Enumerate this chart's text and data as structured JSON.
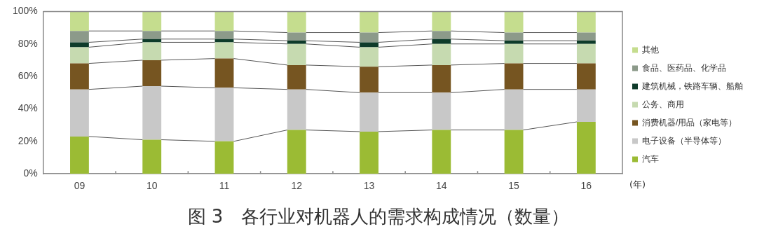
{
  "chart_data": {
    "type": "bar",
    "stacked": true,
    "title": "图 3　各行业对机器人的需求构成情况（数量）",
    "xlabel": "(年)",
    "categories": [
      "09",
      "10",
      "11",
      "12",
      "13",
      "14",
      "15",
      "16"
    ],
    "series": [
      {
        "name": "汽车",
        "color": "#9bbb34",
        "values": [
          23,
          21,
          20,
          27,
          26,
          27,
          27,
          32
        ]
      },
      {
        "name": "电子设备（半导体等）",
        "color": "#c8c8c8",
        "values": [
          29,
          33,
          33,
          25,
          24,
          23,
          25,
          20
        ]
      },
      {
        "name": "消费机器/用品（家电等）",
        "color": "#765521",
        "values": [
          16,
          16,
          18,
          15,
          16,
          17,
          16,
          16
        ]
      },
      {
        "name": "公务、商用",
        "color": "#c6dab0",
        "values": [
          10,
          11,
          10,
          13,
          12,
          13,
          12,
          12
        ]
      },
      {
        "name": "建筑机械，铁路车辆、船舶",
        "color": "#0e3b2a",
        "values": [
          3,
          2,
          2,
          2,
          3,
          3,
          2,
          2
        ]
      },
      {
        "name": "食品、医药品、化学品",
        "color": "#8c9a8a",
        "values": [
          7,
          5,
          5,
          5,
          6,
          5,
          5,
          5
        ]
      },
      {
        "name": "其他",
        "color": "#c5dd8e",
        "values": [
          12,
          12,
          12,
          13,
          13,
          12,
          13,
          13
        ]
      }
    ],
    "ylim": [
      0,
      100
    ],
    "yticks": [
      {
        "value": 0,
        "label": "0%"
      },
      {
        "value": 20,
        "label": "20%"
      },
      {
        "value": 40,
        "label": "40%"
      },
      {
        "value": 60,
        "label": "60%"
      },
      {
        "value": 80,
        "label": "80%"
      },
      {
        "value": 100,
        "label": "100%"
      }
    ],
    "grid": false,
    "legend": "right"
  }
}
